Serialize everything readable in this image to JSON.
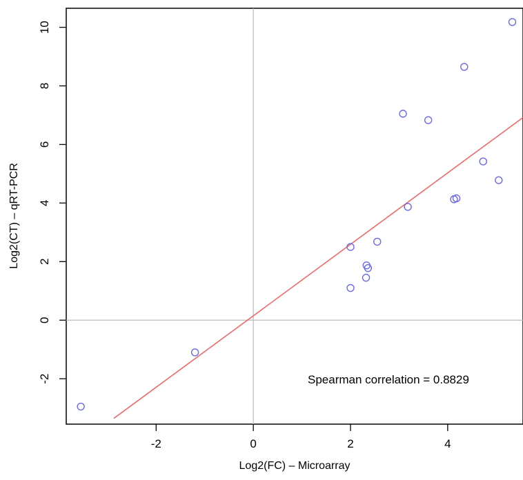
{
  "chart_data": {
    "type": "scatter",
    "xlabel": "Log2(FC) – Microarray",
    "ylabel": "Log2(CT) – qRT-PCR",
    "xlim": [
      -3.85,
      5.55
    ],
    "ylim": [
      -3.55,
      10.65
    ],
    "xticks": [
      -2,
      0,
      2,
      4
    ],
    "yticks": [
      -2,
      0,
      2,
      4,
      6,
      8,
      10
    ],
    "grid": false,
    "reference_lines": {
      "vertical_x": 0,
      "horizontal_y": 0
    },
    "points": [
      {
        "x": -3.55,
        "y": -2.95
      },
      {
        "x": -1.2,
        "y": -1.1
      },
      {
        "x": 2.0,
        "y": 1.1
      },
      {
        "x": 2.0,
        "y": 2.5
      },
      {
        "x": 2.32,
        "y": 1.45
      },
      {
        "x": 2.33,
        "y": 1.87
      },
      {
        "x": 2.36,
        "y": 1.78
      },
      {
        "x": 2.55,
        "y": 2.68
      },
      {
        "x": 3.08,
        "y": 7.05
      },
      {
        "x": 3.18,
        "y": 3.87
      },
      {
        "x": 3.6,
        "y": 6.83
      },
      {
        "x": 4.13,
        "y": 4.13
      },
      {
        "x": 4.18,
        "y": 4.16
      },
      {
        "x": 4.34,
        "y": 8.65
      },
      {
        "x": 4.73,
        "y": 5.42
      },
      {
        "x": 5.05,
        "y": 4.78
      },
      {
        "x": 5.33,
        "y": 10.18
      }
    ],
    "regression_line": {
      "slope": 1.22,
      "intercept": 0.15,
      "x_range": [
        -2.87,
        5.55
      ]
    },
    "annotation": "Spearman correlation = 0.8829",
    "colors": {
      "points": "#6a6ae6",
      "regression": "#f06a6a",
      "reference": "#bbbbbb",
      "axes": "#000000"
    }
  }
}
